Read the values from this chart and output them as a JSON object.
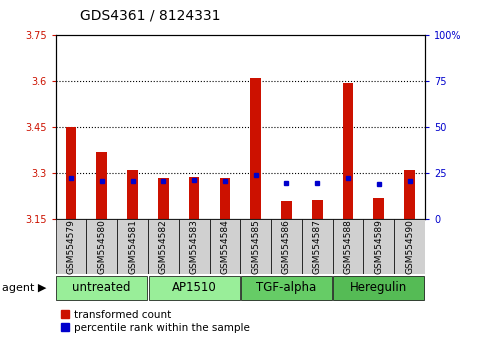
{
  "title": "GDS4361 / 8124331",
  "samples": [
    "GSM554579",
    "GSM554580",
    "GSM554581",
    "GSM554582",
    "GSM554583",
    "GSM554584",
    "GSM554585",
    "GSM554586",
    "GSM554587",
    "GSM554588",
    "GSM554589",
    "GSM554590"
  ],
  "red_values": [
    3.45,
    3.37,
    3.31,
    3.285,
    3.29,
    3.285,
    3.61,
    3.21,
    3.215,
    3.595,
    3.22,
    3.31
  ],
  "blue_values": [
    3.285,
    3.275,
    3.275,
    3.275,
    3.28,
    3.275,
    3.295,
    3.27,
    3.27,
    3.285,
    3.265,
    3.275
  ],
  "y_min": 3.15,
  "y_max": 3.75,
  "y_ticks_left": [
    3.15,
    3.3,
    3.45,
    3.6,
    3.75
  ],
  "y_ticks_right_labels": [
    "0",
    "25",
    "50",
    "75",
    "100%"
  ],
  "y_ticks_right_vals": [
    3.15,
    3.3,
    3.45,
    3.6,
    3.75
  ],
  "gridlines": [
    3.3,
    3.45,
    3.6
  ],
  "groups": [
    {
      "label": "untreated",
      "start": 0,
      "end": 3,
      "color": "#99ee99"
    },
    {
      "label": "AP1510",
      "start": 3,
      "end": 6,
      "color": "#99ee99"
    },
    {
      "label": "TGF-alpha",
      "start": 6,
      "end": 9,
      "color": "#66cc66"
    },
    {
      "label": "Heregulin",
      "start": 9,
      "end": 12,
      "color": "#55bb55"
    }
  ],
  "bar_width": 0.35,
  "red_color": "#cc1100",
  "blue_color": "#0000cc",
  "agent_label": "agent",
  "legend_red": "transformed count",
  "legend_blue": "percentile rank within the sample",
  "title_fontsize": 10,
  "tick_fontsize": 7,
  "sample_fontsize": 6.5,
  "group_fontsize": 8.5,
  "legend_fontsize": 7.5,
  "agent_fontsize": 8
}
